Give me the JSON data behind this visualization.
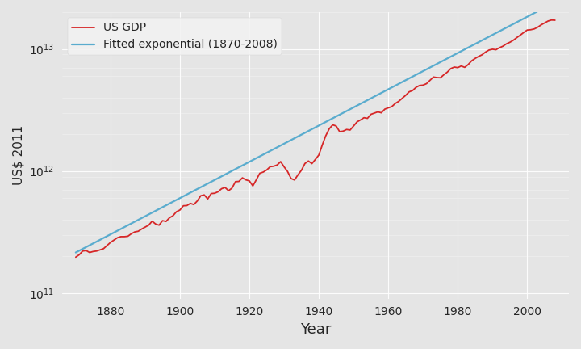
{
  "title": "",
  "xlabel": "Year",
  "ylabel": "US$ 2011",
  "xlim": [
    1866,
    2012
  ],
  "ylim": [
    90000000000.0,
    20000000000000.0
  ],
  "gdp_color": "#d62728",
  "fit_color": "#5aacce",
  "background_color": "#e5e5e5",
  "legend_labels": [
    "US GDP",
    "Fitted exponential (1870-2008)"
  ],
  "gdp_linewidth": 1.3,
  "fit_linewidth": 1.6,
  "fit_start_year": 1870,
  "fit_end_year": 2008,
  "fit_value_1870": 215000000000.0,
  "fit_growth_rate": 0.0342,
  "gdp_years": [
    1870,
    1871,
    1872,
    1873,
    1874,
    1875,
    1876,
    1877,
    1878,
    1879,
    1880,
    1881,
    1882,
    1883,
    1884,
    1885,
    1886,
    1887,
    1888,
    1889,
    1890,
    1891,
    1892,
    1893,
    1894,
    1895,
    1896,
    1897,
    1898,
    1899,
    1900,
    1901,
    1902,
    1903,
    1904,
    1905,
    1906,
    1907,
    1908,
    1909,
    1910,
    1911,
    1912,
    1913,
    1914,
    1915,
    1916,
    1917,
    1918,
    1919,
    1920,
    1921,
    1922,
    1923,
    1924,
    1925,
    1926,
    1927,
    1928,
    1929,
    1930,
    1931,
    1932,
    1933,
    1934,
    1935,
    1936,
    1937,
    1938,
    1939,
    1940,
    1941,
    1942,
    1943,
    1944,
    1945,
    1946,
    1947,
    1948,
    1949,
    1950,
    1951,
    1952,
    1953,
    1954,
    1955,
    1956,
    1957,
    1958,
    1959,
    1960,
    1961,
    1962,
    1963,
    1964,
    1965,
    1966,
    1967,
    1968,
    1969,
    1970,
    1971,
    1972,
    1973,
    1974,
    1975,
    1976,
    1977,
    1978,
    1979,
    1980,
    1981,
    1982,
    1983,
    1984,
    1985,
    1986,
    1987,
    1988,
    1989,
    1990,
    1991,
    1992,
    1993,
    1994,
    1995,
    1996,
    1997,
    1998,
    1999,
    2000,
    2001,
    2002,
    2003,
    2004,
    2005,
    2006,
    2007,
    2008
  ],
  "gdp_values": [
    197000000000.0,
    206000000000.0,
    221000000000.0,
    223000000000.0,
    215000000000.0,
    219000000000.0,
    221000000000.0,
    226000000000.0,
    231000000000.0,
    245000000000.0,
    260000000000.0,
    272000000000.0,
    284000000000.0,
    290000000000.0,
    290000000000.0,
    292000000000.0,
    306000000000.0,
    317000000000.0,
    321000000000.0,
    335000000000.0,
    347000000000.0,
    360000000000.0,
    388000000000.0,
    368000000000.0,
    360000000000.0,
    392000000000.0,
    386000000000.0,
    414000000000.0,
    430000000000.0,
    464000000000.0,
    479000000000.0,
    519000000000.0,
    521000000000.0,
    543000000000.0,
    531000000000.0,
    568000000000.0,
    627000000000.0,
    637000000000.0,
    590000000000.0,
    653000000000.0,
    657000000000.0,
    676000000000.0,
    716000000000.0,
    733000000000.0,
    690000000000.0,
    724000000000.0,
    818000000000.0,
    822000000000.0,
    879000000000.0,
    846000000000.0,
    830000000000.0,
    755000000000.0,
    848000000000.0,
    958000000000.0,
    980000000000.0,
    1020000000000.0,
    1085000000000.0,
    1094000000000.0,
    1120000000000.0,
    1193000000000.0,
    1081000000000.0,
    990000000000.0,
    868000000000.0,
    844000000000.0,
    931000000000.0,
    1014000000000.0,
    1152000000000.0,
    1207000000000.0,
    1149000000000.0,
    1243000000000.0,
    1351000000000.0,
    1635000000000.0,
    1944000000000.0,
    2217000000000.0,
    2387000000000.0,
    2335000000000.0,
    2097000000000.0,
    2120000000000.0,
    2187000000000.0,
    2164000000000.0,
    2334000000000.0,
    2524000000000.0,
    2619000000000.0,
    2731000000000.0,
    2698000000000.0,
    2911000000000.0,
    2981000000000.0,
    3049000000000.0,
    2996000000000.0,
    3210000000000.0,
    3291000000000.0,
    3366000000000.0,
    3570000000000.0,
    3720000000000.0,
    3937000000000.0,
    4164000000000.0,
    4447000000000.0,
    4561000000000.0,
    4846000000000.0,
    5014000000000.0,
    5048000000000.0,
    5191000000000.0,
    5525000000000.0,
    5881000000000.0,
    5820000000000.0,
    5800000000000.0,
    6140000000000.0,
    6455000000000.0,
    6899000000000.0,
    7095000000000.0,
    7024000000000.0,
    7241000000000.0,
    7059000000000.0,
    7444000000000.0,
    7987000000000.0,
    8349000000000.0,
    8671000000000.0,
    8950000000000.0,
    9418000000000.0,
    9784000000000.0,
    9935000000000.0,
    9843000000000.0,
    10220000000000.0,
    10520000000000.0,
    11000000000000.0,
    11330000000000.0,
    11770000000000.0,
    12370000000000.0,
    12960000000000.0,
    13630000000000.0,
    14270000000000.0,
    14350000000000.0,
    14560000000000.0,
    15040000000000.0,
    15730000000000.0,
    16310000000000.0,
    16910000000000.0,
    17240000000000.0,
    17170000000000.0
  ]
}
